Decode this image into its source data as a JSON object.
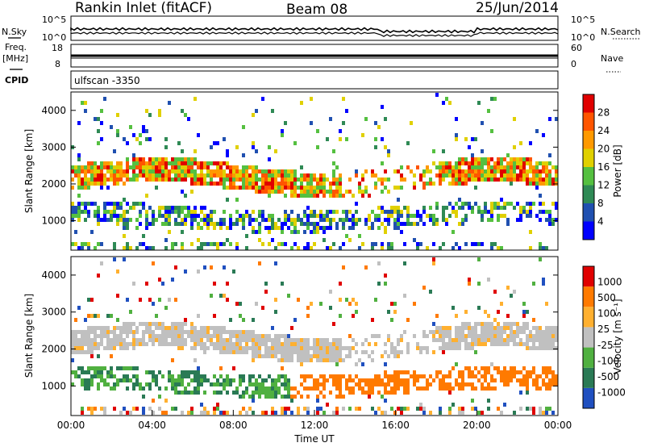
{
  "header": {
    "title": "Rankin Inlet (fitACF)",
    "beam": "Beam 08",
    "date": "25/Jun/2014"
  },
  "noise_panel": {
    "left_label": "N.Sky",
    "right_label": "N.Search",
    "y_ticks_top": "10^5",
    "y_ticks_bottom": "10^0"
  },
  "freq_panel": {
    "left_label_1": "Freq.",
    "left_label_2": "[MHz]",
    "left_ticks": [
      "18",
      "8"
    ],
    "right_label": "Nave",
    "right_ticks": [
      "60",
      "0"
    ]
  },
  "cpid": {
    "label": "CPID",
    "value": "ulfscan -3350"
  },
  "colors": {
    "power_scale": [
      "#0000ff",
      "#2050b0",
      "#2f8a55",
      "#55c040",
      "#e0d000",
      "#ff9900",
      "#ff5500",
      "#e00000"
    ],
    "velocity_scale": [
      "#2050c0",
      "#2a7a55",
      "#50b040",
      "#c0c0c0",
      "#ffb030",
      "#ff7a00",
      "#e00000"
    ]
  },
  "chart_data": [
    {
      "type": "heatmap",
      "name": "power",
      "ylabel": "Slant Range [km]",
      "ylim": [
        200,
        4500
      ],
      "y_ticks": [
        1000,
        2000,
        3000,
        4000
      ],
      "colorbar_label": "Power [dB]",
      "colorbar_ticks": [
        "4",
        "8",
        "12",
        "16",
        "20",
        "24",
        "28"
      ],
      "colorbar_range": [
        0,
        30
      ]
    },
    {
      "type": "heatmap",
      "name": "velocity",
      "ylabel": "Slant Range [km]",
      "ylim": [
        200,
        4500
      ],
      "y_ticks": [
        1000,
        2000,
        3000,
        4000
      ],
      "colorbar_label": "Velocity [m s⁻¹]",
      "colorbar_ticks": [
        "-1000",
        "-500",
        "-100",
        "-25",
        "25",
        "100",
        "500",
        "1000"
      ],
      "xlabel": "Time UT",
      "x_ticks": [
        "00:00",
        "04:00",
        "08:00",
        "12:00",
        "16:00",
        "20:00",
        "00:00"
      ]
    }
  ]
}
